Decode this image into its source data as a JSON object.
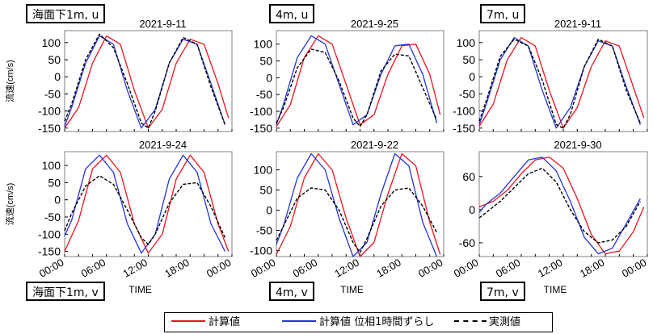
{
  "colors": {
    "calc": "#e8141c",
    "shifted": "#2233d9",
    "observed": "#000000"
  },
  "legend": {
    "calc": "計算値",
    "shifted": "計算値 位相1時間ずらし",
    "observed": "実測値"
  },
  "row_tags": {
    "top": [
      "海面下1m, u",
      "4m, u",
      "7m, u"
    ],
    "bottom": [
      "海面下1m, v",
      "4m, v",
      "7m, v"
    ]
  },
  "ylabel": "流速(cm/s)",
  "xlabel": "TIME",
  "x_ticks": [
    "00:00",
    "06:00",
    "12:00",
    "18:00",
    "00:00"
  ],
  "chart_data": [
    {
      "type": "line",
      "title": "2021-9-11",
      "component": "u",
      "depth": "海面下1m",
      "ylim": [
        -160,
        135
      ],
      "yticks": [
        100,
        50,
        0,
        -50,
        -100,
        -150
      ],
      "series": [
        {
          "name": "計算値",
          "x": [
            0,
            2,
            4,
            6,
            8,
            10,
            12,
            14,
            16,
            18,
            20,
            22,
            23.5
          ],
          "y": [
            -150,
            -90,
            40,
            120,
            95,
            -40,
            -150,
            -95,
            40,
            110,
            95,
            -20,
            -120
          ]
        },
        {
          "name": "計算値 位相1時間ずらし",
          "x": [
            0,
            1,
            3,
            5,
            7,
            9,
            11,
            13,
            15,
            17,
            19,
            21,
            23
          ],
          "y": [
            -145,
            -90,
            40,
            120,
            95,
            -40,
            -150,
            -95,
            40,
            110,
            95,
            -20,
            -140
          ]
        },
        {
          "name": "実測値",
          "x": [
            0,
            1,
            3,
            5,
            7,
            9,
            11,
            12,
            13,
            15,
            17,
            19,
            21,
            23
          ],
          "y": [
            -130,
            -80,
            50,
            125,
            85,
            -20,
            -135,
            -150,
            -100,
            40,
            115,
            95,
            -30,
            -140
          ]
        }
      ]
    },
    {
      "type": "line",
      "title": "2021-9-25",
      "component": "u",
      "depth": "4m",
      "ylim": [
        -160,
        140
      ],
      "yticks": [
        100,
        50,
        0,
        -50,
        -100,
        -150
      ],
      "series": [
        {
          "name": "計算値",
          "x": [
            0,
            2,
            4,
            6,
            8,
            10,
            12,
            14,
            16,
            18,
            20,
            22,
            23.5
          ],
          "y": [
            -145,
            -80,
            60,
            125,
            100,
            -20,
            -140,
            -110,
            10,
            95,
            100,
            10,
            -110
          ]
        },
        {
          "name": "計算値 位相1時間ずらし",
          "x": [
            0,
            1,
            3,
            5,
            7,
            9,
            11,
            13,
            15,
            17,
            19,
            21,
            23
          ],
          "y": [
            -140,
            -80,
            60,
            125,
            100,
            -20,
            -140,
            -110,
            10,
            95,
            100,
            10,
            -135
          ]
        },
        {
          "name": "実測値",
          "x": [
            0,
            1,
            3,
            5,
            7,
            9,
            11,
            12,
            13,
            15,
            17,
            19,
            21,
            23
          ],
          "y": [
            -135,
            -90,
            30,
            85,
            75,
            -10,
            -120,
            -145,
            -110,
            20,
            70,
            65,
            -30,
            -125
          ]
        }
      ]
    },
    {
      "type": "line",
      "title": "2021-9-11",
      "component": "u",
      "depth": "7m",
      "ylim": [
        -160,
        135
      ],
      "yticks": [
        100,
        50,
        0,
        -50,
        -100,
        -150
      ],
      "series": [
        {
          "name": "計算値",
          "x": [
            0,
            2,
            4,
            6,
            8,
            10,
            12,
            14,
            16,
            18,
            20,
            22,
            23.5
          ],
          "y": [
            -145,
            -80,
            50,
            115,
            90,
            -40,
            -150,
            -90,
            30,
            105,
            90,
            -30,
            -120
          ]
        },
        {
          "name": "計算値 位相1時間ずらし",
          "x": [
            0,
            1,
            3,
            5,
            7,
            9,
            11,
            13,
            15,
            17,
            19,
            21,
            23
          ],
          "y": [
            -140,
            -80,
            50,
            115,
            90,
            -40,
            -150,
            -90,
            30,
            105,
            90,
            -30,
            -140
          ]
        },
        {
          "name": "実測値",
          "x": [
            0,
            1,
            3,
            5,
            7,
            9,
            11,
            12,
            13,
            15,
            17,
            19,
            21,
            23
          ],
          "y": [
            -130,
            -70,
            60,
            110,
            90,
            -10,
            -140,
            -150,
            -110,
            30,
            110,
            90,
            -40,
            -135
          ]
        }
      ]
    },
    {
      "type": "line",
      "title": "2021-9-24",
      "component": "v",
      "depth": "海面下1m",
      "ylim": [
        -165,
        140
      ],
      "yticks": [
        100,
        50,
        0,
        -50,
        -100,
        -150
      ],
      "series": [
        {
          "name": "計算値",
          "x": [
            0,
            2,
            4,
            6,
            8,
            10,
            12,
            14,
            16,
            18,
            20,
            22,
            23.5
          ],
          "y": [
            -150,
            -60,
            90,
            130,
            80,
            -70,
            -155,
            -100,
            60,
            130,
            80,
            -70,
            -150
          ]
        },
        {
          "name": "計算値 位相1時間ずらし",
          "x": [
            0,
            1,
            3,
            5,
            7,
            9,
            11,
            13,
            15,
            17,
            19,
            21,
            23
          ],
          "y": [
            -105,
            -60,
            90,
            130,
            80,
            -70,
            -155,
            -100,
            60,
            130,
            80,
            -70,
            -150
          ]
        },
        {
          "name": "実測値",
          "x": [
            0,
            1,
            3,
            5,
            7,
            9,
            11,
            12,
            13,
            15,
            17,
            19,
            21,
            23
          ],
          "y": [
            -90,
            -40,
            40,
            70,
            45,
            -30,
            -110,
            -130,
            -100,
            -10,
            45,
            50,
            -20,
            -110
          ]
        }
      ]
    },
    {
      "type": "line",
      "title": "2021-9-22",
      "component": "v",
      "depth": "4m",
      "ylim": [
        -115,
        145
      ],
      "yticks": [
        100,
        50,
        0,
        -50,
        -100
      ],
      "series": [
        {
          "name": "計算値",
          "x": [
            0,
            2,
            4,
            6,
            8,
            10,
            12,
            14,
            16,
            18,
            20,
            22,
            23.5
          ],
          "y": [
            -110,
            -40,
            80,
            140,
            100,
            -20,
            -115,
            -80,
            40,
            140,
            110,
            -30,
            -110
          ]
        },
        {
          "name": "計算値 位相1時間ずらし",
          "x": [
            0,
            1,
            3,
            5,
            7,
            9,
            11,
            13,
            15,
            17,
            19,
            21,
            23
          ],
          "y": [
            -85,
            -40,
            80,
            140,
            100,
            -20,
            -115,
            -80,
            40,
            140,
            110,
            -30,
            -115
          ]
        },
        {
          "name": "実測値",
          "x": [
            0,
            1,
            3,
            5,
            7,
            9,
            11,
            12,
            13,
            15,
            17,
            19,
            21,
            23
          ],
          "y": [
            -75,
            -40,
            30,
            55,
            50,
            0,
            -80,
            -105,
            -70,
            10,
            50,
            55,
            10,
            -55
          ]
        }
      ]
    },
    {
      "type": "line",
      "title": "2021-9-30",
      "component": "v",
      "depth": "7m",
      "ylim": [
        -85,
        105
      ],
      "yticks": [
        60,
        0,
        -60
      ],
      "series": [
        {
          "name": "計算値",
          "x": [
            0,
            2,
            4,
            6,
            8,
            10,
            12,
            14,
            16,
            18,
            20,
            22,
            23.5
          ],
          "y": [
            5,
            15,
            35,
            65,
            90,
            95,
            75,
            20,
            -45,
            -80,
            -75,
            -40,
            5
          ]
        },
        {
          "name": "計算値 位相1時間ずらし",
          "x": [
            0,
            1,
            3,
            5,
            7,
            9,
            11,
            13,
            15,
            17,
            19,
            21,
            23
          ],
          "y": [
            -5,
            10,
            30,
            60,
            90,
            95,
            70,
            15,
            -50,
            -80,
            -70,
            -25,
            20
          ]
        },
        {
          "name": "実測値",
          "x": [
            0,
            1,
            3,
            5,
            7,
            9,
            11,
            12,
            13,
            15,
            17,
            19,
            21,
            23
          ],
          "y": [
            -15,
            -5,
            15,
            40,
            65,
            75,
            50,
            25,
            0,
            -40,
            -60,
            -55,
            -30,
            15
          ]
        }
      ]
    }
  ]
}
